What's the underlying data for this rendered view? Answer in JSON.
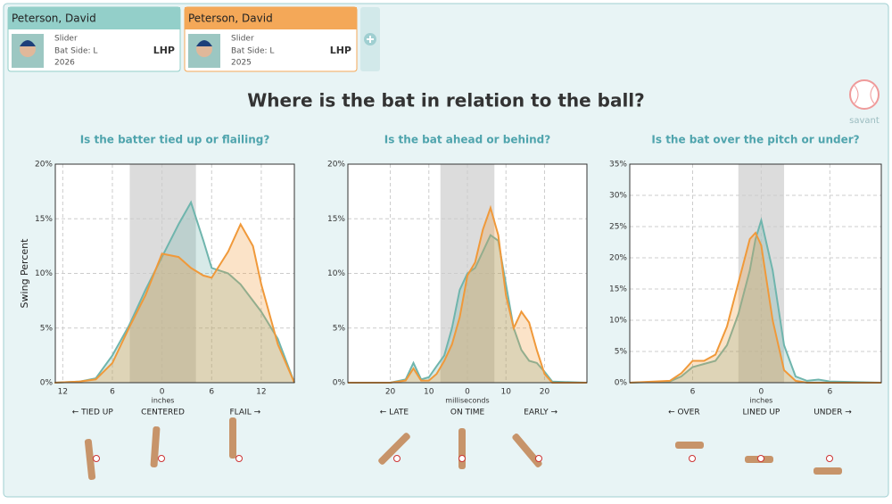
{
  "cards": [
    {
      "name": "Peterson, David",
      "pitch": "Slider",
      "bat_side": "Bat Side: L",
      "year": "2026",
      "hand": "LHP",
      "color": "#93cfc9"
    },
    {
      "name": "Peterson, David",
      "pitch": "Slider",
      "bat_side": "Bat Side: L",
      "year": "2025",
      "hand": "LHP",
      "color": "#f4a858"
    }
  ],
  "title": "Where is the bat in relation to the ball?",
  "logo": "savant",
  "chart_data": [
    {
      "type": "area",
      "subtitle": "Is the batter tied up or flailing?",
      "ylabel": "Swing Percent",
      "xlabel": "inches",
      "xlim": [
        -12.9,
        16
      ],
      "ylim": [
        0,
        20
      ],
      "band": [
        -3.9,
        4.1
      ],
      "grid": true,
      "xticks": [
        {
          "value": -12,
          "label": "12"
        },
        {
          "value": -6,
          "label": "6"
        },
        0,
        6,
        12
      ],
      "yticks": [
        {
          "value": 0,
          "label": "0%"
        },
        {
          "value": 5,
          "label": "5%"
        },
        {
          "value": 10,
          "label": "10%"
        },
        {
          "value": 15,
          "label": "15%"
        },
        {
          "value": 20,
          "label": "20%"
        }
      ],
      "zones": [
        "← TIED UP",
        "CENTERED",
        "FLAIL →"
      ],
      "x": [
        -13,
        -10,
        -8,
        -6,
        -4,
        -2,
        0,
        2,
        3.5,
        5,
        6,
        8,
        9.5,
        11,
        12,
        14,
        16
      ],
      "series": [
        {
          "color": "#6fb5ad",
          "values": [
            0,
            0.1,
            0.4,
            2.5,
            5.2,
            8.5,
            11.5,
            14.5,
            16.5,
            13,
            10.5,
            10,
            9,
            7.5,
            6.5,
            4,
            0
          ]
        },
        {
          "color": "#f0993a",
          "values": [
            0,
            0.1,
            0.3,
            1.8,
            5,
            8,
            11.8,
            11.5,
            10.5,
            9.8,
            9.6,
            12,
            14.5,
            12.5,
            9,
            3.5,
            0
          ]
        }
      ]
    },
    {
      "type": "area",
      "subtitle": "Is the bat ahead or behind?",
      "xlabel": "milliseconds",
      "xlim": [
        -31,
        31
      ],
      "ylim": [
        0,
        20
      ],
      "band": [
        -7,
        7
      ],
      "grid": true,
      "xticks": [
        {
          "value": -20,
          "label": "20"
        },
        {
          "value": -10,
          "label": "10"
        },
        0,
        10,
        20
      ],
      "yticks": [
        {
          "value": 0,
          "label": "0%"
        },
        {
          "value": 5,
          "label": "5%"
        },
        {
          "value": 10,
          "label": "10%"
        },
        {
          "value": 15,
          "label": "15%"
        },
        {
          "value": 20,
          "label": "20%"
        }
      ],
      "zones": [
        "← LATE",
        "ON TIME",
        "EARLY →"
      ],
      "x": [
        -31,
        -20,
        -16,
        -14,
        -12,
        -10,
        -8,
        -6,
        -4,
        -2,
        0,
        2,
        4,
        6,
        8,
        10,
        12,
        14,
        16,
        18,
        20,
        22,
        31
      ],
      "series": [
        {
          "color": "#6fb5ad",
          "values": [
            0,
            0,
            0.3,
            1.8,
            0.3,
            0.5,
            1.5,
            2.5,
            5,
            8.5,
            10,
            10.5,
            12,
            13.5,
            13,
            9,
            5,
            3,
            2,
            1.8,
            1,
            0.1,
            0
          ]
        },
        {
          "color": "#f0993a",
          "values": [
            0,
            0,
            0.2,
            1.3,
            0.2,
            0.2,
            0.8,
            2,
            3.5,
            6,
            9.8,
            11,
            14,
            16,
            13.5,
            8,
            5,
            6.5,
            5.5,
            3,
            0.8,
            0,
            0
          ]
        }
      ]
    },
    {
      "type": "area",
      "subtitle": "Is the bat over the pitch or under?",
      "xlabel": "inches",
      "xlim": [
        -11.5,
        10.5
      ],
      "ylim": [
        0,
        35
      ],
      "band": [
        -2,
        2
      ],
      "grid": true,
      "xticks": [
        {
          "value": -6,
          "label": "6"
        },
        0,
        6
      ],
      "yticks": [
        {
          "value": 0,
          "label": "0%"
        },
        {
          "value": 5,
          "label": "5%"
        },
        {
          "value": 10,
          "label": "10%"
        },
        {
          "value": 15,
          "label": "15%"
        },
        {
          "value": 20,
          "label": "20%"
        },
        {
          "value": 25,
          "label": "25%"
        },
        {
          "value": 30,
          "label": "30%"
        },
        {
          "value": 35,
          "label": "35%"
        }
      ],
      "zones": [
        "← OVER",
        "LINED UP",
        "UNDER →"
      ],
      "x": [
        -11.5,
        -8,
        -7,
        -6,
        -5,
        -4,
        -3,
        -2,
        -1,
        -0.5,
        0,
        1,
        2,
        3,
        4,
        5,
        6,
        10.5
      ],
      "series": [
        {
          "color": "#6fb5ad",
          "values": [
            0,
            0.2,
            1,
            2.5,
            3,
            3.5,
            6,
            11,
            18,
            23,
            26,
            18,
            6,
            1,
            0.3,
            0.5,
            0.2,
            0
          ]
        },
        {
          "color": "#f0993a",
          "values": [
            0,
            0.3,
            1.5,
            3.5,
            3.5,
            4.5,
            9,
            16,
            23,
            24,
            22,
            10,
            2,
            0.3,
            0,
            0,
            0,
            0
          ]
        }
      ]
    }
  ]
}
